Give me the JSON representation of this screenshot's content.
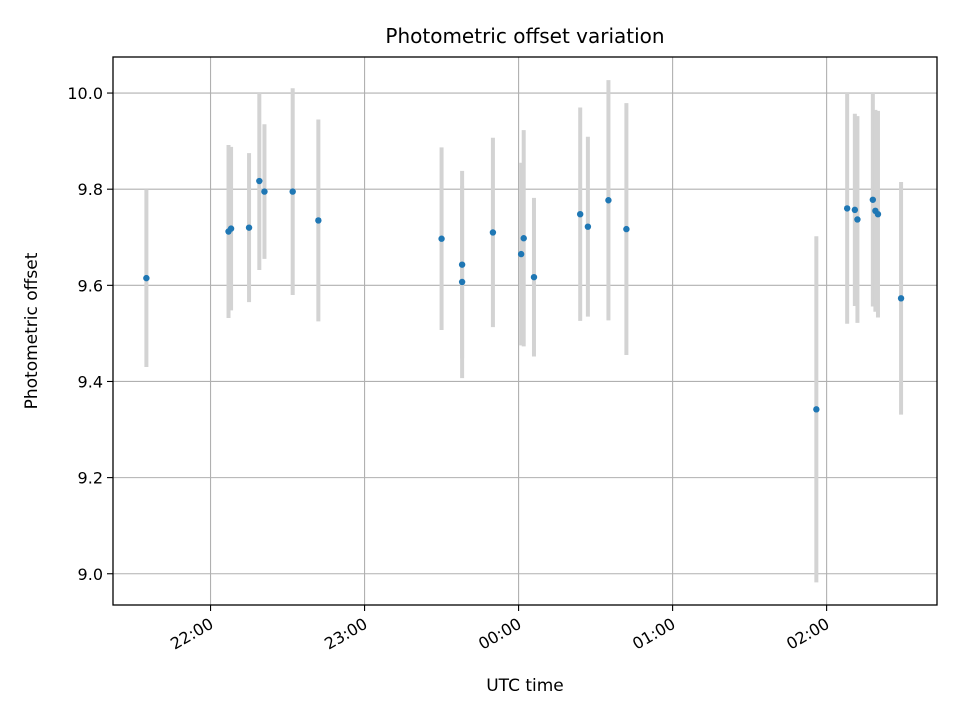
{
  "chart_data": {
    "type": "scatter",
    "title": "Photometric offset variation",
    "xlabel": "UTC time",
    "ylabel": "Photometric offset",
    "x_axis_kind": "time",
    "xlim": [
      "21:22",
      "02:43"
    ],
    "ylim": [
      8.935,
      10.075
    ],
    "x_ticks": [
      {
        "time": "22:00",
        "label": "22:00"
      },
      {
        "time": "23:00",
        "label": "23:00"
      },
      {
        "time": "00:00",
        "label": "00:00"
      },
      {
        "time": "01:00",
        "label": "01:00"
      },
      {
        "time": "02:00",
        "label": "02:00"
      }
    ],
    "y_ticks": [
      {
        "value": 9.0,
        "label": "9.0"
      },
      {
        "value": 9.2,
        "label": "9.2"
      },
      {
        "value": 9.4,
        "label": "9.4"
      },
      {
        "value": 9.6,
        "label": "9.6"
      },
      {
        "value": 9.8,
        "label": "9.8"
      },
      {
        "value": 10.0,
        "label": "10.0"
      }
    ],
    "grid": true,
    "marker_color": "#1f77b4",
    "errorbar_color": "#d3d3d3",
    "points": [
      {
        "time": "21:35",
        "y": 9.615,
        "yerr": 0.185
      },
      {
        "time": "22:07",
        "y": 9.712,
        "yerr": 0.18
      },
      {
        "time": "22:08",
        "y": 9.718,
        "yerr": 0.17
      },
      {
        "time": "22:15",
        "y": 9.72,
        "yerr": 0.155
      },
      {
        "time": "22:19",
        "y": 9.817,
        "yerr": 0.185
      },
      {
        "time": "22:21",
        "y": 9.795,
        "yerr": 0.14
      },
      {
        "time": "22:32",
        "y": 9.795,
        "yerr": 0.215
      },
      {
        "time": "22:42",
        "y": 9.735,
        "yerr": 0.21
      },
      {
        "time": "23:30",
        "y": 9.697,
        "yerr": 0.19
      },
      {
        "time": "23:38",
        "y": 9.643,
        "yerr": 0.195
      },
      {
        "time": "23:38",
        "y": 9.607,
        "yerr": 0.2
      },
      {
        "time": "23:50",
        "y": 9.71,
        "yerr": 0.197
      },
      {
        "time": "00:01",
        "y": 9.665,
        "yerr": 0.19
      },
      {
        "time": "00:02",
        "y": 9.698,
        "yerr": 0.225
      },
      {
        "time": "00:06",
        "y": 9.617,
        "yerr": 0.165
      },
      {
        "time": "00:24",
        "y": 9.748,
        "yerr": 0.222
      },
      {
        "time": "00:27",
        "y": 9.722,
        "yerr": 0.187
      },
      {
        "time": "00:35",
        "y": 9.777,
        "yerr": 0.25
      },
      {
        "time": "00:42",
        "y": 9.717,
        "yerr": 0.262
      },
      {
        "time": "01:56",
        "y": 9.342,
        "yerr": 0.36
      },
      {
        "time": "02:08",
        "y": 9.76,
        "yerr": 0.24
      },
      {
        "time": "02:11",
        "y": 9.757,
        "yerr": 0.2
      },
      {
        "time": "02:12",
        "y": 9.737,
        "yerr": 0.215
      },
      {
        "time": "02:18",
        "y": 9.778,
        "yerr": 0.222
      },
      {
        "time": "02:19",
        "y": 9.755,
        "yerr": 0.21
      },
      {
        "time": "02:20",
        "y": 9.748,
        "yerr": 0.215
      },
      {
        "time": "02:29",
        "y": 9.573,
        "yerr": 0.242
      }
    ]
  }
}
